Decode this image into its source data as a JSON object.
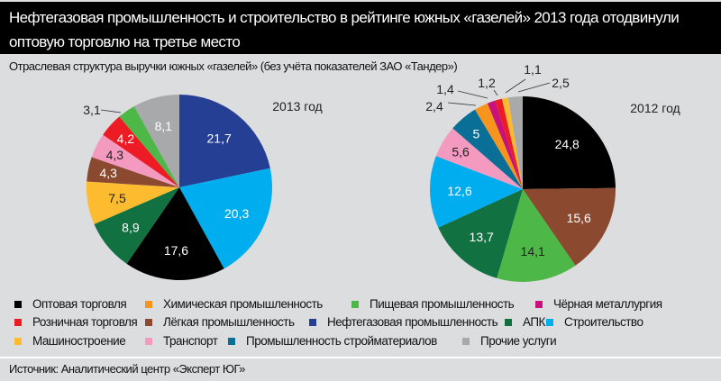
{
  "title": "Нефтегазовая промышленность и строительство в рейтинге южных «газелей» 2013 года отодвинули оптовую торговлю на третье место",
  "subtitle": "Отраслевая структура выручки южных «газелей» (без учёта показателей ЗАО «Тандер»)",
  "source": "Источник: Аналитический центр «Эксперт ЮГ»",
  "legend": [
    {
      "label": "Оптовая торговля",
      "color": "#000000"
    },
    {
      "label": "Химическая промышленность",
      "color": "#f7941d"
    },
    {
      "label": "Пищевая промышленность",
      "color": "#4db848"
    },
    {
      "label": "Чёрная металлургия",
      "color": "#c8127a"
    },
    {
      "label": "Розничная торговля",
      "color": "#ed1c24"
    },
    {
      "label": "Лёгкая промышленность",
      "color": "#8b4a2f"
    },
    {
      "label": "Нефтегазовая промышленность",
      "color": "#243f94"
    },
    {
      "label": "АПК",
      "color": "#127141"
    },
    {
      "label": "Строительство",
      "color": "#00aeef"
    },
    {
      "label": "Машиностроение",
      "color": "#fdbb30"
    },
    {
      "label": "Транспорт",
      "color": "#f49ac1"
    },
    {
      "label": "Промышленность стройматериалов",
      "color": "#0a6f96"
    },
    {
      "label": "Прочие услуги",
      "color": "#a7a9ab"
    }
  ],
  "chart_data": [
    {
      "type": "pie",
      "title": "2013 год",
      "unit": "%",
      "slices": [
        {
          "category": "Нефтегазовая промышленность",
          "value": 21.7,
          "label": "21,7"
        },
        {
          "category": "Строительство",
          "value": 20.3,
          "label": "20,3"
        },
        {
          "category": "Оптовая торговля",
          "value": 17.6,
          "label": "17,6"
        },
        {
          "category": "АПК",
          "value": 8.9,
          "label": "8,9"
        },
        {
          "category": "Машиностроение",
          "value": 7.5,
          "label": "7,5"
        },
        {
          "category": "Лёгкая промышленность",
          "value": 4.3,
          "label": "4,3"
        },
        {
          "category": "Транспорт",
          "value": 4.3,
          "label": "4,3"
        },
        {
          "category": "Розничная торговля",
          "value": 4.2,
          "label": "4,2"
        },
        {
          "category": "Пищевая промышленность",
          "value": 3.1,
          "label": "3,1"
        },
        {
          "category": "Прочие услуги",
          "value": 8.1,
          "label": "8,1"
        }
      ]
    },
    {
      "type": "pie",
      "title": "2012 год",
      "unit": "%",
      "slices": [
        {
          "category": "Оптовая торговля",
          "value": 24.8,
          "label": "24,8"
        },
        {
          "category": "Лёгкая промышленность",
          "value": 15.6,
          "label": "15,6"
        },
        {
          "category": "Пищевая промышленность",
          "value": 14.1,
          "label": "14,1"
        },
        {
          "category": "АПК",
          "value": 13.7,
          "label": "13,7"
        },
        {
          "category": "Строительство",
          "value": 12.6,
          "label": "12,6"
        },
        {
          "category": "Транспорт",
          "value": 5.6,
          "label": "5,6"
        },
        {
          "category": "Промышленность стройматериалов",
          "value": 5,
          "label": "5"
        },
        {
          "category": "Химическая промышленность",
          "value": 2.4,
          "label": "2,4"
        },
        {
          "category": "Чёрная металлургия",
          "value": 1.4,
          "label": "1,4"
        },
        {
          "category": "Розничная торговля",
          "value": 1.2,
          "label": "1,2"
        },
        {
          "category": "Машиностроение",
          "value": 1.1,
          "label": "1,1"
        },
        {
          "category": "Прочие услуги",
          "value": 2.5,
          "label": "2,5"
        }
      ]
    }
  ]
}
